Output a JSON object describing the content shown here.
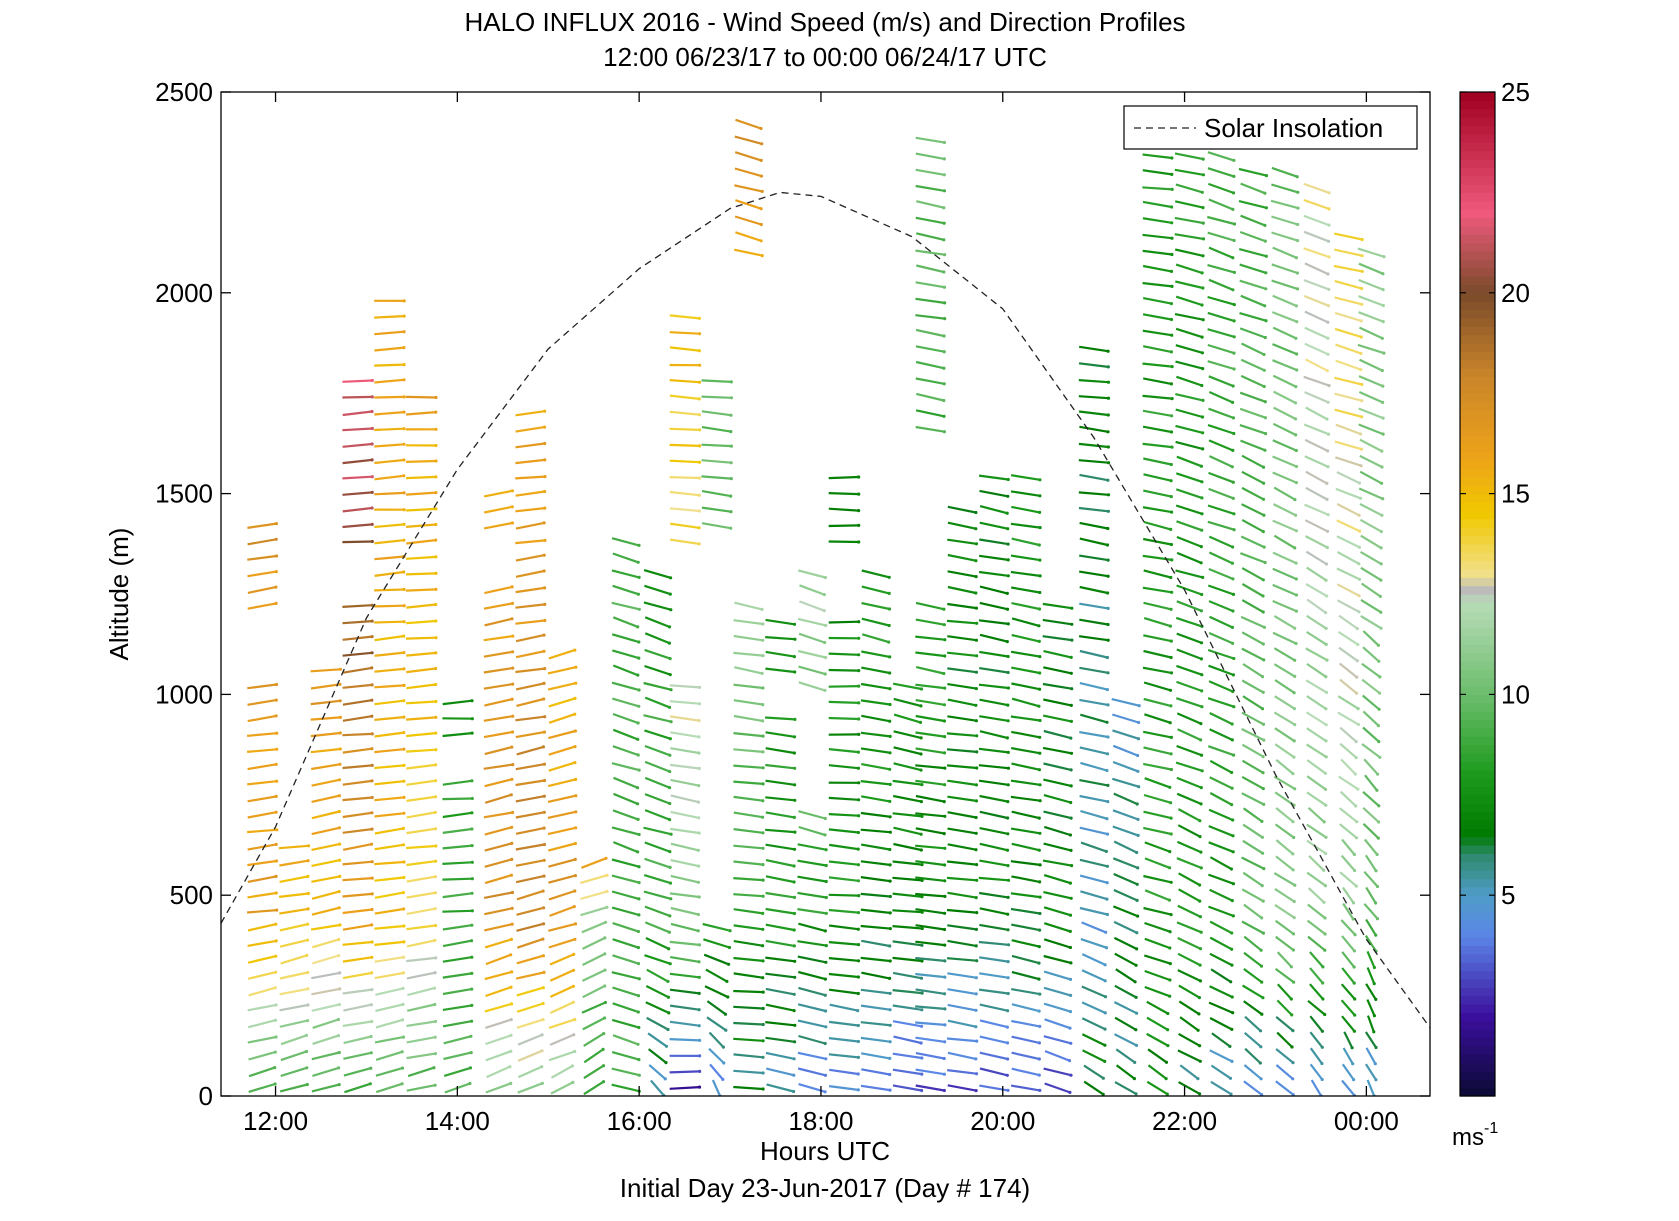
{
  "chart_data": {
    "type": "wind-barb-profile",
    "title": "HALO INFLUX 2016 - Wind Speed (m/s) and Direction Profiles",
    "subtitle": "12:00 06/23/17 to 00:00 06/24/17  UTC",
    "xlabel": "Hours UTC",
    "xlabel2": "Initial Day 23-Jun-2017 (Day # 174)",
    "ylabel": "Altitude (m)",
    "xlim_hours": [
      11.4,
      24.7
    ],
    "ylim": [
      0,
      2500
    ],
    "x_ticks": [
      {
        "hour": 12,
        "label": "12:00"
      },
      {
        "hour": 14,
        "label": "14:00"
      },
      {
        "hour": 16,
        "label": "16:00"
      },
      {
        "hour": 18,
        "label": "18:00"
      },
      {
        "hour": 20,
        "label": "20:00"
      },
      {
        "hour": 22,
        "label": "22:00"
      },
      {
        "hour": 24,
        "label": "00:00"
      }
    ],
    "y_ticks": [
      0,
      500,
      1000,
      1500,
      2000,
      2500
    ],
    "legend": {
      "label": "Solar Insolation",
      "position": "top-right"
    },
    "colorbar": {
      "range": [
        0,
        25
      ],
      "ticks": [
        5,
        10,
        15,
        20,
        25
      ],
      "unit": "ms",
      "unit_exponent": "-1",
      "stops": [
        {
          "v": 0,
          "c": "#0a0a33"
        },
        {
          "v": 2,
          "c": "#3b0f9e"
        },
        {
          "v": 4,
          "c": "#5b86e6"
        },
        {
          "v": 5,
          "c": "#4f9cc8"
        },
        {
          "v": 6,
          "c": "#2f8a6e"
        },
        {
          "v": 6.5,
          "c": "#007a00"
        },
        {
          "v": 8,
          "c": "#1c9a1c"
        },
        {
          "v": 10,
          "c": "#6cbd6c"
        },
        {
          "v": 12.3,
          "c": "#b8dcb8"
        },
        {
          "v": 12.6,
          "c": "#bbbbbb"
        },
        {
          "v": 13,
          "c": "#f2e08a"
        },
        {
          "v": 14.5,
          "c": "#f0c800"
        },
        {
          "v": 16,
          "c": "#eda11a"
        },
        {
          "v": 18,
          "c": "#c8842a"
        },
        {
          "v": 20,
          "c": "#7a4a2a"
        },
        {
          "v": 22,
          "c": "#f05a7d"
        },
        {
          "v": 25,
          "c": "#a00020"
        }
      ]
    },
    "solar_insolation": {
      "peak_hour": 17.55,
      "peak_altitude_m": 2250,
      "points_hour_alt": [
        [
          11.4,
          430
        ],
        [
          12.0,
          670
        ],
        [
          13.0,
          1190
        ],
        [
          14.0,
          1560
        ],
        [
          15.0,
          1860
        ],
        [
          16.0,
          2060
        ],
        [
          17.0,
          2210
        ],
        [
          17.55,
          2250
        ],
        [
          18.0,
          2240
        ],
        [
          19.0,
          2140
        ],
        [
          20.0,
          1960
        ],
        [
          21.0,
          1640
        ],
        [
          22.0,
          1260
        ],
        [
          23.0,
          800
        ],
        [
          24.0,
          390
        ],
        [
          24.7,
          170
        ]
      ]
    },
    "profile_columns": [
      {
        "hour": 11.85,
        "top_m": 1450,
        "gap": [
          1200,
          1030
        ],
        "speed_upper": 17,
        "dir_upper": 255,
        "speed_mid": 16,
        "dir_mid": 255,
        "speed_low": 9,
        "dir_low": 240
      },
      {
        "hour": 12.2,
        "top_m": 620,
        "speed_upper": 16,
        "dir_upper": 255,
        "speed_mid": 15,
        "dir_mid": 250,
        "speed_low": 9,
        "dir_low": 240
      },
      {
        "hour": 12.55,
        "top_m": 1080,
        "speed_upper": 17,
        "dir_upper": 258,
        "speed_mid": 15,
        "dir_mid": 250,
        "speed_low": 9,
        "dir_low": 240
      },
      {
        "hour": 12.9,
        "top_m": 1780,
        "gap": [
          1370,
          1220
        ],
        "speed_upper": 22,
        "dir_upper": 265,
        "speed_mid": 16,
        "dir_mid": 255,
        "speed_low": 9,
        "dir_low": 245
      },
      {
        "hour": 13.25,
        "top_m": 2000,
        "speed_upper": 16,
        "dir_upper": 268,
        "speed_mid": 15,
        "dir_mid": 255,
        "speed_low": 9,
        "dir_low": 245
      },
      {
        "hour": 13.6,
        "top_m": 1750,
        "speed_upper": 16,
        "dir_upper": 268,
        "speed_mid": 14,
        "dir_mid": 255,
        "speed_low": 9,
        "dir_low": 245
      },
      {
        "hour": 14.0,
        "top_m": 1000,
        "gap": [
          900,
          810
        ],
        "speed_upper": 8,
        "dir_upper": 265,
        "speed_mid": 9,
        "dir_mid": 260,
        "speed_low": 9,
        "dir_low": 240
      },
      {
        "hour": 14.45,
        "top_m": 1500,
        "gap": [
          1400,
          1270
        ],
        "speed_upper": 16,
        "dir_upper": 255,
        "speed_mid": 17,
        "dir_mid": 245,
        "speed_low": 11,
        "dir_low": 235
      },
      {
        "hour": 14.8,
        "top_m": 1700,
        "speed_upper": 16,
        "dir_upper": 260,
        "speed_mid": 18,
        "dir_mid": 245,
        "speed_low": 11,
        "dir_low": 235
      },
      {
        "hour": 15.15,
        "top_m": 1130,
        "speed_upper": 15,
        "dir_upper": 245,
        "speed_mid": 17,
        "dir_mid": 240,
        "speed_low": 11,
        "dir_low": 230
      },
      {
        "hour": 15.5,
        "top_m": 600,
        "speed_upper": 16,
        "dir_upper": 240,
        "speed_mid": 11,
        "dir_mid": 235,
        "speed_low": 8,
        "dir_low": 220
      },
      {
        "hour": 15.85,
        "top_m": 1380,
        "speed_upper": 9,
        "dir_upper": 300,
        "speed_mid": 9,
        "dir_mid": 300,
        "speed_low": 9,
        "dir_low": 300
      },
      {
        "hour": 16.2,
        "top_m": 1300,
        "speed_upper": 8,
        "dir_upper": 300,
        "speed_mid": 9,
        "dir_mid": 300,
        "speed_low": 5,
        "dir_low": 330
      },
      {
        "hour": 16.5,
        "top_m": 1960,
        "gap": [
          1380,
          1020
        ],
        "speed_upper": 15,
        "dir_upper": 275,
        "speed_mid": 11,
        "dir_mid": 290,
        "speed_low": 1,
        "dir_low": 270
      },
      {
        "hour": 16.85,
        "top_m": 1780,
        "gap": [
          1400,
          420
        ],
        "speed_upper": 10,
        "dir_upper": 280,
        "speed_mid": 8,
        "dir_mid": 295,
        "speed_low": 4,
        "dir_low": 345
      },
      {
        "hour": 17.2,
        "top_m": 2420,
        "gap": [
          2100,
          1220
        ],
        "speed_upper": 17,
        "dir_upper": 300,
        "speed_mid": 8,
        "dir_mid": 280,
        "speed_low": 6,
        "dir_low": 280
      },
      {
        "hour": 17.55,
        "top_m": 1200,
        "gap": [
          1050,
          960
        ],
        "speed_upper": 8,
        "dir_upper": 280,
        "speed_mid": 8,
        "dir_mid": 285,
        "speed_low": 5,
        "dir_low": 290
      },
      {
        "hour": 17.9,
        "top_m": 1300,
        "gap": [
          1000,
          720
        ],
        "speed_upper": 12,
        "dir_upper": 300,
        "speed_mid": 8,
        "dir_mid": 290,
        "speed_low": 4,
        "dir_low": 300
      },
      {
        "hour": 18.25,
        "top_m": 1550,
        "gap": [
          1350,
          1190
        ],
        "speed_upper": 7,
        "dir_upper": 270,
        "speed_mid": 8,
        "dir_mid": 280,
        "speed_low": 4,
        "dir_low": 290
      },
      {
        "hour": 18.6,
        "top_m": 1300,
        "speed_upper": 8,
        "dir_upper": 295,
        "speed_mid": 7,
        "dir_mid": 280,
        "speed_low": 4,
        "dir_low": 290
      },
      {
        "hour": 18.95,
        "top_m": 1050,
        "speed_upper": 8,
        "dir_upper": 295,
        "speed_mid": 7,
        "dir_mid": 282,
        "speed_low": 3,
        "dir_low": 290
      },
      {
        "hour": 19.2,
        "top_m": 2400,
        "gap": [
          1660,
          1250
        ],
        "speed_upper": 10,
        "dir_upper": 290,
        "speed_mid": 7,
        "dir_mid": 285,
        "speed_low": 3,
        "dir_low": 285
      },
      {
        "hour": 19.55,
        "top_m": 1480,
        "speed_upper": 7,
        "dir_upper": 285,
        "speed_mid": 7,
        "dir_mid": 285,
        "speed_low": 3,
        "dir_low": 285
      },
      {
        "hour": 19.9,
        "top_m": 1550,
        "speed_upper": 7,
        "dir_upper": 290,
        "speed_mid": 7,
        "dir_mid": 285,
        "speed_low": 3,
        "dir_low": 290
      },
      {
        "hour": 20.25,
        "top_m": 1540,
        "speed_upper": 8,
        "dir_upper": 290,
        "speed_mid": 7,
        "dir_mid": 290,
        "speed_low": 3,
        "dir_low": 290
      },
      {
        "hour": 20.6,
        "top_m": 1220,
        "speed_upper": 7,
        "dir_upper": 290,
        "speed_mid": 7,
        "dir_mid": 295,
        "speed_low": 3,
        "dir_low": 300
      },
      {
        "hour": 21.0,
        "top_m": 1880,
        "speed_upper": 7,
        "dir_upper": 280,
        "speed_mid": 5,
        "dir_mid": 300,
        "speed_low": 7,
        "dir_low": 320
      },
      {
        "hour": 21.35,
        "top_m": 1000,
        "speed_upper": 5,
        "dir_upper": 300,
        "speed_mid": 6,
        "dir_mid": 310,
        "speed_low": 6,
        "dir_low": 320
      },
      {
        "hour": 21.7,
        "top_m": 2380,
        "speed_upper": 8,
        "dir_upper": 280,
        "speed_mid": 8,
        "dir_mid": 300,
        "speed_low": 7,
        "dir_low": 320
      },
      {
        "hour": 22.05,
        "top_m": 2400,
        "speed_upper": 8,
        "dir_upper": 290,
        "speed_mid": 8,
        "dir_mid": 310,
        "speed_low": 6,
        "dir_low": 320
      },
      {
        "hour": 22.4,
        "top_m": 2350,
        "speed_upper": 9,
        "dir_upper": 300,
        "speed_mid": 8,
        "dir_mid": 310,
        "speed_low": 5,
        "dir_low": 320
      },
      {
        "hour": 22.75,
        "top_m": 2300,
        "speed_upper": 9,
        "dir_upper": 300,
        "speed_mid": 10,
        "dir_mid": 320,
        "speed_low": 4,
        "dir_low": 325
      },
      {
        "hour": 23.1,
        "top_m": 2300,
        "speed_upper": 10,
        "dir_upper": 300,
        "speed_mid": 11,
        "dir_mid": 325,
        "speed_low": 4,
        "dir_low": 330
      },
      {
        "hour": 23.45,
        "top_m": 2280,
        "speed_upper": 13,
        "dir_upper": 300,
        "speed_mid": 11,
        "dir_mid": 330,
        "speed_low": 4,
        "dir_low": 335
      },
      {
        "hour": 23.8,
        "top_m": 2150,
        "speed_upper": 14,
        "dir_upper": 290,
        "speed_mid": 11,
        "dir_mid": 335,
        "speed_low": 4,
        "dir_low": 340
      },
      {
        "hour": 24.05,
        "top_m": 2100,
        "speed_upper": 11,
        "dir_upper": 300,
        "speed_mid": 10,
        "dir_mid": 340,
        "speed_low": 4,
        "dir_low": 345
      }
    ]
  }
}
